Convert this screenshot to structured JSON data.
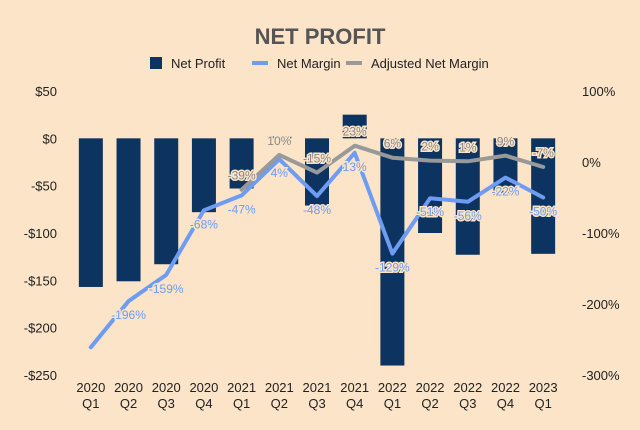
{
  "chart_data": {
    "type": "bar",
    "title": "NET PROFIT",
    "categories": [
      [
        "2020",
        "Q1"
      ],
      [
        "2020",
        "Q2"
      ],
      [
        "2020",
        "Q3"
      ],
      [
        "2020",
        "Q4"
      ],
      [
        "2021",
        "Q1"
      ],
      [
        "2021",
        "Q2"
      ],
      [
        "2021",
        "Q3"
      ],
      [
        "2021",
        "Q4"
      ],
      [
        "2022",
        "Q1"
      ],
      [
        "2022",
        "Q2"
      ],
      [
        "2022",
        "Q3"
      ],
      [
        "2022",
        "Q4"
      ],
      [
        "2023",
        "Q1"
      ]
    ],
    "left_axis": {
      "ylim": [
        -250,
        50
      ],
      "ticks": [
        50,
        0,
        -50,
        -100,
        -150,
        -200,
        -250
      ],
      "tick_labels": [
        "$50",
        "$0",
        "-$50",
        "-$100",
        "-$150",
        "-$200",
        "-$250"
      ]
    },
    "right_axis": {
      "ylim": [
        -300,
        100
      ],
      "ticks": [
        100,
        0,
        -100,
        -200,
        -300
      ],
      "tick_labels": [
        "100%",
        "0%",
        "-100%",
        "-200%",
        "-300%"
      ]
    },
    "legend_position": "top",
    "series": [
      {
        "name": "Net Profit",
        "kind": "bar",
        "axis": "left",
        "color": "#0d3461",
        "values": [
          -157,
          -151,
          -133,
          -78,
          -53,
          2,
          -71,
          25,
          -240,
          -100,
          -123,
          -60,
          -122
        ]
      },
      {
        "name": "Net Margin",
        "kind": "line",
        "axis": "right",
        "color": "#6e9cf2",
        "values": [
          -261,
          -196,
          -159,
          -68,
          -47,
          4,
          -48,
          13,
          -129,
          -51,
          -56,
          -22,
          -50
        ],
        "labels": [
          "",
          "-196%",
          "-159%",
          "-68%",
          "-47%",
          "4%",
          "-48%",
          "13%",
          "-129%",
          "-51%",
          "-56%",
          "-22%",
          "-50%"
        ]
      },
      {
        "name": "Adjusted Net Margin",
        "kind": "line",
        "axis": "right",
        "color": "#999999",
        "values": [
          null,
          null,
          null,
          null,
          -39,
          10,
          -15,
          23,
          6,
          2,
          1,
          9,
          -7
        ],
        "labels": [
          "",
          "",
          "",
          "",
          "-39%",
          "10%",
          "-15%",
          "23%",
          "6%",
          "2%",
          "1%",
          "9%",
          "-7%"
        ]
      }
    ]
  }
}
